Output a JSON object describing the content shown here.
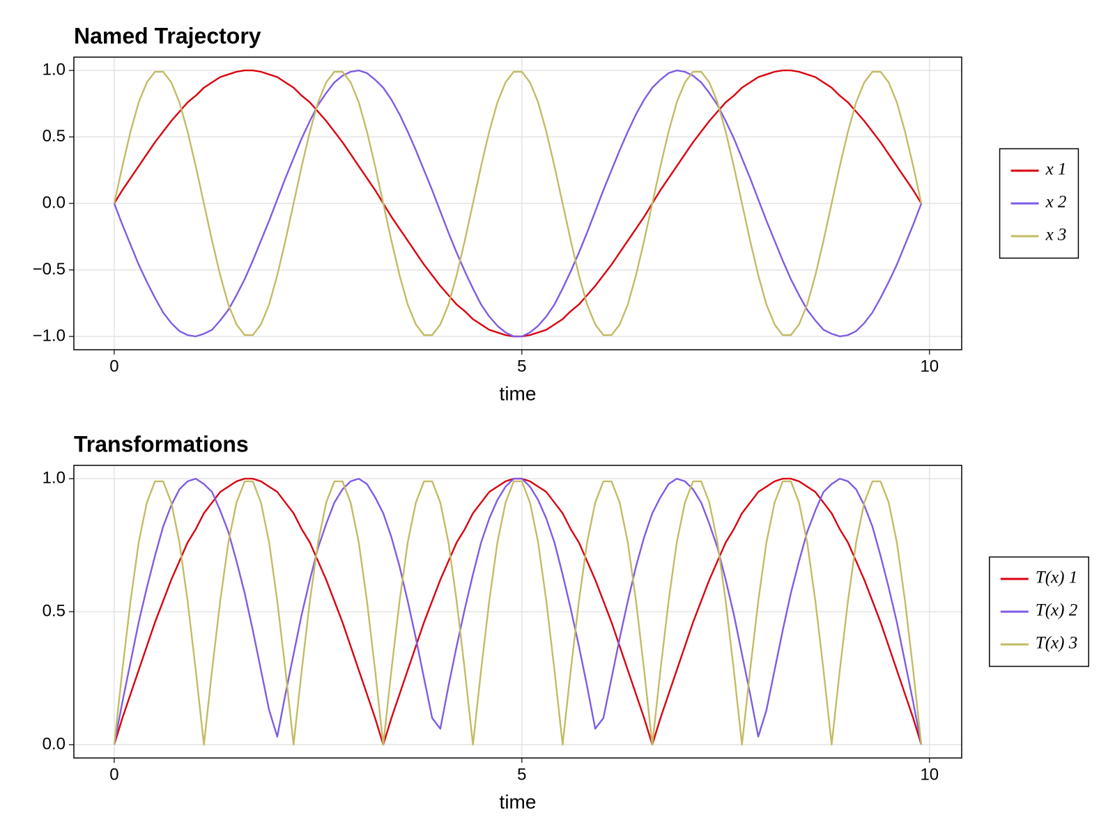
{
  "chart_data": [
    {
      "type": "line",
      "title": "Named Trajectory",
      "xlabel": "time",
      "x": [
        0,
        0.1,
        0.2,
        0.3,
        0.4,
        0.5,
        0.6,
        0.7,
        0.8,
        0.9,
        1,
        1.1,
        1.2,
        1.3,
        1.4,
        1.5,
        1.6,
        1.7,
        1.8,
        1.9,
        2,
        2.1,
        2.2,
        2.3,
        2.4,
        2.5,
        2.6,
        2.7,
        2.8,
        2.9,
        3,
        3.1,
        3.2,
        3.3,
        3.4,
        3.5,
        3.6,
        3.7,
        3.8,
        3.9,
        4,
        4.1,
        4.2,
        4.3,
        4.4,
        4.5,
        4.6,
        4.7,
        4.8,
        4.9,
        5,
        5.1,
        5.2,
        5.3,
        5.4,
        5.5,
        5.6,
        5.7,
        5.8,
        5.9,
        6,
        6.1,
        6.2,
        6.3,
        6.4,
        6.5,
        6.6,
        6.7,
        6.8,
        6.9,
        7,
        7.1,
        7.2,
        7.3,
        7.4,
        7.5,
        7.6,
        7.7,
        7.8,
        7.9,
        8,
        8.1,
        8.2,
        8.3,
        8.4,
        8.5,
        8.6,
        8.7,
        8.8,
        8.9,
        9,
        9.1,
        9.2,
        9.3,
        9.4,
        9.5,
        9.6,
        9.7,
        9.8,
        9.9
      ],
      "series": [
        {
          "name": "x 1",
          "color": "#d9000d",
          "values": [
            0,
            0.1,
            0.19,
            0.28,
            0.37,
            0.46,
            0.54,
            0.62,
            0.69,
            0.76,
            0.81,
            0.87,
            0.91,
            0.95,
            0.97,
            0.99,
            1,
            1,
            0.99,
            0.97,
            0.95,
            0.91,
            0.87,
            0.81,
            0.76,
            0.69,
            0.62,
            0.54,
            0.46,
            0.37,
            0.28,
            0.19,
            0.1,
            0,
            -0.1,
            -0.19,
            -0.28,
            -0.37,
            -0.46,
            -0.54,
            -0.62,
            -0.69,
            -0.76,
            -0.81,
            -0.87,
            -0.91,
            -0.95,
            -0.97,
            -0.99,
            -1,
            -1,
            -0.99,
            -0.97,
            -0.95,
            -0.91,
            -0.87,
            -0.81,
            -0.76,
            -0.69,
            -0.62,
            -0.54,
            -0.46,
            -0.37,
            -0.28,
            -0.19,
            -0.1,
            0,
            0.1,
            0.19,
            0.28,
            0.37,
            0.46,
            0.54,
            0.62,
            0.69,
            0.76,
            0.81,
            0.87,
            0.91,
            0.95,
            0.97,
            0.99,
            1,
            1,
            0.99,
            0.97,
            0.95,
            0.91,
            0.87,
            0.81,
            0.76,
            0.69,
            0.62,
            0.54,
            0.46,
            0.37,
            0.28,
            0.19,
            0.1,
            0
          ]
        },
        {
          "name": "x 2",
          "color": "#7f5be3",
          "values": [
            0,
            -0.16,
            -0.31,
            -0.46,
            -0.59,
            -0.71,
            -0.82,
            -0.9,
            -0.96,
            -0.99,
            -1,
            -0.98,
            -0.95,
            -0.88,
            -0.8,
            -0.69,
            -0.57,
            -0.43,
            -0.28,
            -0.13,
            0.03,
            0.19,
            0.34,
            0.49,
            0.62,
            0.74,
            0.83,
            0.91,
            0.96,
            0.99,
            1,
            0.98,
            0.93,
            0.87,
            0.78,
            0.67,
            0.54,
            0.4,
            0.25,
            0.1,
            -0.06,
            -0.22,
            -0.37,
            -0.51,
            -0.64,
            -0.76,
            -0.85,
            -0.92,
            -0.97,
            -1,
            -1,
            -0.97,
            -0.92,
            -0.85,
            -0.76,
            -0.64,
            -0.51,
            -0.37,
            -0.22,
            -0.06,
            0.1,
            0.25,
            0.4,
            0.54,
            0.67,
            0.78,
            0.87,
            0.93,
            0.98,
            1,
            0.99,
            0.96,
            0.91,
            0.83,
            0.74,
            0.62,
            0.49,
            0.34,
            0.19,
            0.03,
            -0.13,
            -0.28,
            -0.43,
            -0.57,
            -0.69,
            -0.8,
            -0.88,
            -0.95,
            -0.98,
            -1,
            -0.99,
            -0.96,
            -0.9,
            -0.82,
            -0.71,
            -0.59,
            -0.46,
            -0.31,
            -0.16,
            0
          ]
        },
        {
          "name": "x 3",
          "color": "#c3bb64",
          "values": [
            0,
            0.28,
            0.54,
            0.76,
            0.91,
            0.99,
            0.99,
            0.91,
            0.76,
            0.54,
            0.28,
            0,
            -0.28,
            -0.54,
            -0.76,
            -0.91,
            -0.99,
            -0.99,
            -0.91,
            -0.76,
            -0.54,
            -0.28,
            0,
            0.28,
            0.54,
            0.76,
            0.91,
            0.99,
            0.99,
            0.91,
            0.76,
            0.54,
            0.28,
            0,
            -0.28,
            -0.54,
            -0.76,
            -0.91,
            -0.99,
            -0.99,
            -0.91,
            -0.76,
            -0.54,
            -0.28,
            0,
            0.28,
            0.54,
            0.76,
            0.91,
            0.99,
            0.99,
            0.91,
            0.76,
            0.54,
            0.28,
            0,
            -0.28,
            -0.54,
            -0.76,
            -0.91,
            -0.99,
            -0.99,
            -0.91,
            -0.76,
            -0.54,
            -0.28,
            0,
            0.28,
            0.54,
            0.76,
            0.91,
            0.99,
            0.99,
            0.91,
            0.76,
            0.54,
            0.28,
            0,
            -0.28,
            -0.54,
            -0.76,
            -0.91,
            -0.99,
            -0.99,
            -0.91,
            -0.76,
            -0.54,
            -0.28,
            0,
            0.28,
            0.54,
            0.76,
            0.91,
            0.99,
            0.99,
            0.91,
            0.76,
            0.54,
            0.28,
            0
          ]
        }
      ],
      "xlim": [
        -0.495,
        10.395
      ],
      "xticks": [
        0,
        5,
        10
      ],
      "ylim": [
        -1.1,
        1.1
      ],
      "yticks": [
        {
          "value": -1,
          "label": "−1.0"
        },
        {
          "value": -0.5,
          "label": "−0.5"
        },
        {
          "value": 0,
          "label": "0.0"
        },
        {
          "value": 0.5,
          "label": "0.5"
        },
        {
          "value": 1,
          "label": "1.0"
        }
      ],
      "grid": true,
      "legend": "right"
    },
    {
      "type": "line",
      "title": "Transformations",
      "xlabel": "time",
      "x": [
        0,
        0.1,
        0.2,
        0.3,
        0.4,
        0.5,
        0.6,
        0.7,
        0.8,
        0.9,
        1,
        1.1,
        1.2,
        1.3,
        1.4,
        1.5,
        1.6,
        1.7,
        1.8,
        1.9,
        2,
        2.1,
        2.2,
        2.3,
        2.4,
        2.5,
        2.6,
        2.7,
        2.8,
        2.9,
        3,
        3.1,
        3.2,
        3.3,
        3.4,
        3.5,
        3.6,
        3.7,
        3.8,
        3.9,
        4,
        4.1,
        4.2,
        4.3,
        4.4,
        4.5,
        4.6,
        4.7,
        4.8,
        4.9,
        5,
        5.1,
        5.2,
        5.3,
        5.4,
        5.5,
        5.6,
        5.7,
        5.8,
        5.9,
        6,
        6.1,
        6.2,
        6.3,
        6.4,
        6.5,
        6.6,
        6.7,
        6.8,
        6.9,
        7,
        7.1,
        7.2,
        7.3,
        7.4,
        7.5,
        7.6,
        7.7,
        7.8,
        7.9,
        8,
        8.1,
        8.2,
        8.3,
        8.4,
        8.5,
        8.6,
        8.7,
        8.8,
        8.9,
        9,
        9.1,
        9.2,
        9.3,
        9.4,
        9.5,
        9.6,
        9.7,
        9.8,
        9.9
      ],
      "series": [
        {
          "name": "T(x) 1",
          "color": "#d9000d",
          "values": [
            0,
            0.1,
            0.19,
            0.28,
            0.37,
            0.46,
            0.54,
            0.62,
            0.69,
            0.76,
            0.81,
            0.87,
            0.91,
            0.95,
            0.97,
            0.99,
            1,
            1,
            0.99,
            0.97,
            0.95,
            0.91,
            0.87,
            0.81,
            0.76,
            0.69,
            0.62,
            0.54,
            0.46,
            0.37,
            0.28,
            0.19,
            0.1,
            0,
            0.1,
            0.19,
            0.28,
            0.37,
            0.46,
            0.54,
            0.62,
            0.69,
            0.76,
            0.81,
            0.87,
            0.91,
            0.95,
            0.97,
            0.99,
            1,
            1,
            0.99,
            0.97,
            0.95,
            0.91,
            0.87,
            0.81,
            0.76,
            0.69,
            0.62,
            0.54,
            0.46,
            0.37,
            0.28,
            0.19,
            0.1,
            0,
            0.1,
            0.19,
            0.28,
            0.37,
            0.46,
            0.54,
            0.62,
            0.69,
            0.76,
            0.81,
            0.87,
            0.91,
            0.95,
            0.97,
            0.99,
            1,
            1,
            0.99,
            0.97,
            0.95,
            0.91,
            0.87,
            0.81,
            0.76,
            0.69,
            0.62,
            0.54,
            0.46,
            0.37,
            0.28,
            0.19,
            0.1,
            0
          ]
        },
        {
          "name": "T(x) 2",
          "color": "#7f5be3",
          "values": [
            0,
            0.16,
            0.31,
            0.46,
            0.59,
            0.71,
            0.82,
            0.9,
            0.96,
            0.99,
            1,
            0.98,
            0.95,
            0.88,
            0.8,
            0.69,
            0.57,
            0.43,
            0.28,
            0.13,
            0.03,
            0.19,
            0.34,
            0.49,
            0.62,
            0.74,
            0.83,
            0.91,
            0.96,
            0.99,
            1,
            0.98,
            0.93,
            0.87,
            0.78,
            0.67,
            0.54,
            0.4,
            0.25,
            0.1,
            0.06,
            0.22,
            0.37,
            0.51,
            0.64,
            0.76,
            0.85,
            0.92,
            0.97,
            1,
            1,
            0.97,
            0.92,
            0.85,
            0.76,
            0.64,
            0.51,
            0.37,
            0.22,
            0.06,
            0.1,
            0.25,
            0.4,
            0.54,
            0.67,
            0.78,
            0.87,
            0.93,
            0.98,
            1,
            0.99,
            0.96,
            0.91,
            0.83,
            0.74,
            0.62,
            0.49,
            0.34,
            0.19,
            0.03,
            0.13,
            0.28,
            0.43,
            0.57,
            0.69,
            0.8,
            0.88,
            0.95,
            0.98,
            1,
            0.99,
            0.96,
            0.9,
            0.82,
            0.71,
            0.59,
            0.46,
            0.31,
            0.16,
            0
          ]
        },
        {
          "name": "T(x) 3",
          "color": "#c3bb64",
          "values": [
            0,
            0.28,
            0.54,
            0.76,
            0.91,
            0.99,
            0.99,
            0.91,
            0.76,
            0.54,
            0.28,
            0,
            0.28,
            0.54,
            0.76,
            0.91,
            0.99,
            0.99,
            0.91,
            0.76,
            0.54,
            0.28,
            0,
            0.28,
            0.54,
            0.76,
            0.91,
            0.99,
            0.99,
            0.91,
            0.76,
            0.54,
            0.28,
            0,
            0.28,
            0.54,
            0.76,
            0.91,
            0.99,
            0.99,
            0.91,
            0.76,
            0.54,
            0.28,
            0,
            0.28,
            0.54,
            0.76,
            0.91,
            0.99,
            0.99,
            0.91,
            0.76,
            0.54,
            0.28,
            0,
            0.28,
            0.54,
            0.76,
            0.91,
            0.99,
            0.99,
            0.91,
            0.76,
            0.54,
            0.28,
            0,
            0.28,
            0.54,
            0.76,
            0.91,
            0.99,
            0.99,
            0.91,
            0.76,
            0.54,
            0.28,
            0,
            0.28,
            0.54,
            0.76,
            0.91,
            0.99,
            0.99,
            0.91,
            0.76,
            0.54,
            0.28,
            0,
            0.28,
            0.54,
            0.76,
            0.91,
            0.99,
            0.99,
            0.91,
            0.76,
            0.54,
            0.28,
            0
          ]
        }
      ],
      "xlim": [
        -0.495,
        10.395
      ],
      "xticks": [
        0,
        5,
        10
      ],
      "ylim": [
        -0.05,
        1.05
      ],
      "yticks": [
        {
          "value": 0,
          "label": "0.0"
        },
        {
          "value": 0.5,
          "label": "0.5"
        },
        {
          "value": 1,
          "label": "1.0"
        }
      ],
      "grid": true,
      "legend": "right"
    }
  ]
}
